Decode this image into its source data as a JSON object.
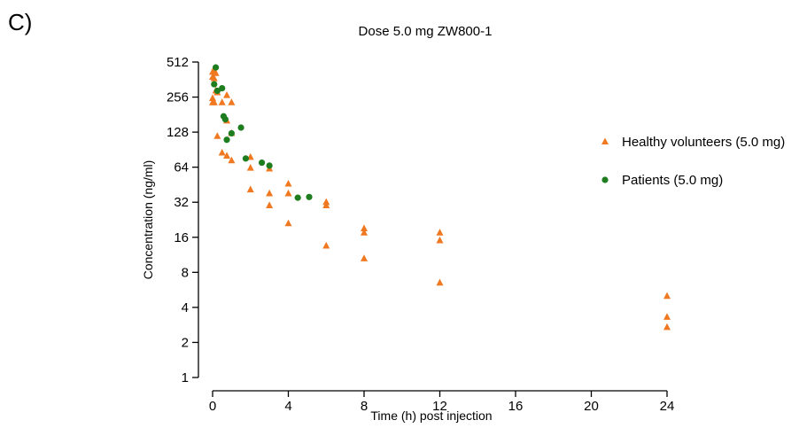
{
  "panel_label": "C)",
  "chart_data": {
    "type": "scatter",
    "title": "Dose 5.0 mg ZW800-1",
    "xlabel": "Time (h) post injection",
    "ylabel": "Concentration (ng/ml)",
    "xlim": [
      0,
      24
    ],
    "ylim": [
      1,
      512
    ],
    "yscale": "log2",
    "xticks": [
      0,
      4,
      8,
      12,
      16,
      20,
      24
    ],
    "yticks": [
      1,
      2,
      4,
      8,
      16,
      32,
      64,
      128,
      256,
      512
    ],
    "grid": false,
    "legend_position": "right",
    "series": [
      {
        "name": "Healthy volunteers (5.0 mg)",
        "marker": "triangle",
        "color": "#f07820",
        "points": [
          [
            0.0,
            420
          ],
          [
            0.0,
            380
          ],
          [
            0.0,
            250
          ],
          [
            0.0,
            230
          ],
          [
            0.083,
            435
          ],
          [
            0.083,
            370
          ],
          [
            0.083,
            230
          ],
          [
            0.167,
            410
          ],
          [
            0.167,
            290
          ],
          [
            0.25,
            118
          ],
          [
            0.25,
            280
          ],
          [
            0.5,
            230
          ],
          [
            0.5,
            85
          ],
          [
            0.75,
            265
          ],
          [
            0.75,
            160
          ],
          [
            0.75,
            80
          ],
          [
            1.0,
            230
          ],
          [
            1.0,
            125
          ],
          [
            1.0,
            73
          ],
          [
            2.0,
            78
          ],
          [
            2.0,
            63
          ],
          [
            2.0,
            41
          ],
          [
            3.0,
            62
          ],
          [
            3.0,
            38
          ],
          [
            3.0,
            30
          ],
          [
            4.0,
            46
          ],
          [
            4.0,
            38
          ],
          [
            4.0,
            21
          ],
          [
            6.0,
            32
          ],
          [
            6.0,
            30
          ],
          [
            6.0,
            13.5
          ],
          [
            8.0,
            19
          ],
          [
            8.0,
            17.5
          ],
          [
            8.0,
            10.5
          ],
          [
            12.0,
            17.5
          ],
          [
            12.0,
            15
          ],
          [
            12.0,
            6.5
          ],
          [
            24.0,
            5
          ],
          [
            24.0,
            3.3
          ],
          [
            24.0,
            2.7
          ]
        ]
      },
      {
        "name": "Patients (5.0 mg)",
        "marker": "circle",
        "color": "#1e7d1e",
        "points": [
          [
            0.083,
            330
          ],
          [
            0.167,
            460
          ],
          [
            0.25,
            290
          ],
          [
            0.5,
            305
          ],
          [
            0.58,
            175
          ],
          [
            0.67,
            165
          ],
          [
            0.75,
            110
          ],
          [
            1.0,
            125
          ],
          [
            1.5,
            140
          ],
          [
            1.75,
            76
          ],
          [
            2.6,
            70
          ],
          [
            3.0,
            66
          ],
          [
            4.5,
            35
          ],
          [
            5.1,
            35.5
          ]
        ]
      }
    ]
  }
}
